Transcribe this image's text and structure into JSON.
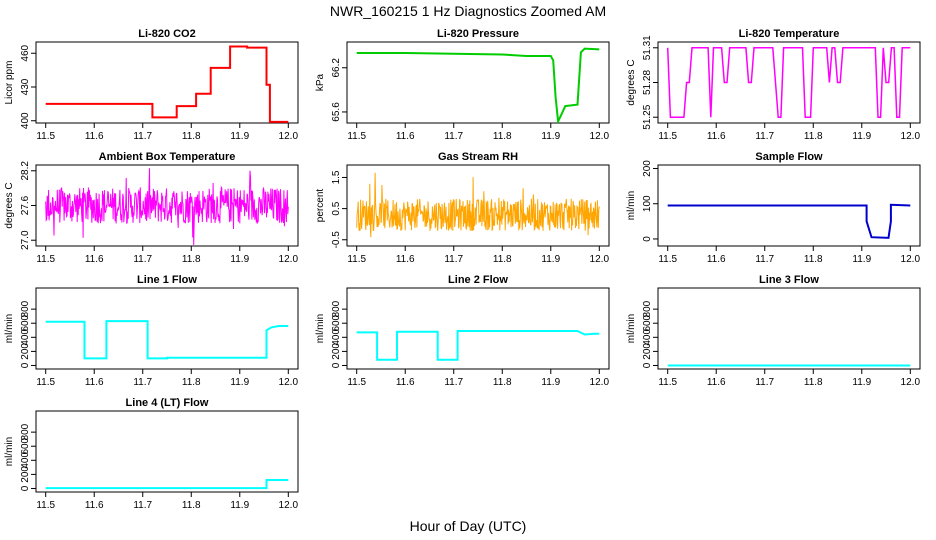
{
  "figure": {
    "title": "NWR_160215  1 Hz Diagnostics Zoomed AM",
    "xlabel": "Hour of Day (UTC)"
  },
  "chart_data": [
    {
      "type": "line",
      "title": "Li-820 CO2",
      "ylabel": "Licor ppm",
      "color": "#ff0000",
      "xlim": [
        11.48,
        12.02
      ],
      "ylim": [
        398,
        470
      ],
      "yticks": [
        "400",
        "430",
        "460"
      ],
      "xticks": [
        "11.5",
        "11.6",
        "11.7",
        "11.8",
        "11.9",
        "12.0"
      ],
      "x": [
        11.5,
        11.72,
        11.72,
        11.77,
        11.77,
        11.81,
        11.81,
        11.84,
        11.84,
        11.88,
        11.88,
        11.915,
        11.915,
        11.955,
        11.955,
        11.962,
        11.962,
        12.0
      ],
      "y": [
        415.0,
        415.0,
        403.0,
        403.0,
        413.0,
        413.0,
        424.0,
        424.0,
        447.0,
        447.0,
        466.0,
        466.0,
        465.0,
        465.0,
        432.0,
        432.0,
        399.0,
        399.0
      ]
    },
    {
      "type": "line",
      "title": "Li-820 Pressure",
      "ylabel": "kPa",
      "color": "#00cc00",
      "xlim": [
        11.48,
        12.02
      ],
      "ylim": [
        65.45,
        66.55
      ],
      "yticks": [
        "65.6",
        "66.2"
      ],
      "xticks": [
        "11.5",
        "11.6",
        "11.7",
        "11.8",
        "11.9",
        "12.0"
      ],
      "x": [
        11.5,
        11.6,
        11.7,
        11.8,
        11.85,
        11.9,
        11.905,
        11.91,
        11.915,
        11.93,
        11.955,
        11.962,
        11.97,
        12.0
      ],
      "y": [
        66.4,
        66.4,
        66.39,
        66.38,
        66.36,
        66.36,
        66.3,
        65.8,
        65.47,
        65.68,
        65.7,
        66.41,
        66.46,
        66.45
      ]
    },
    {
      "type": "line",
      "title": "Li-820 Temperature",
      "ylabel": "degrees C",
      "color": "#ff00ff",
      "xlim": [
        11.48,
        12.02
      ],
      "ylim": [
        51.245,
        51.315
      ],
      "yticks": [
        "51.25",
        "51.28",
        "51.31"
      ],
      "xticks": [
        "11.5",
        "11.6",
        "11.7",
        "11.8",
        "11.9",
        "12.0"
      ],
      "values": [
        51.25,
        51.28,
        51.31
      ],
      "note": "signal oscillates between 51.25 and 51.31 degC"
    },
    {
      "type": "line",
      "title": "Ambient Box Temperature",
      "ylabel": "degrees C",
      "color": "#ff00ff",
      "xlim": [
        11.48,
        12.02
      ],
      "ylim": [
        26.9,
        28.3
      ],
      "yticks": [
        "27.0",
        "27.6",
        "28.2"
      ],
      "xticks": [
        "11.5",
        "11.6",
        "11.7",
        "11.8",
        "11.9",
        "12.0"
      ],
      "mean": 27.6,
      "range": [
        26.9,
        28.3
      ]
    },
    {
      "type": "line",
      "title": "Gas Stream RH",
      "ylabel": "percent",
      "color": "#ffa500",
      "xlim": [
        11.48,
        12.02
      ],
      "ylim": [
        -0.7,
        1.9
      ],
      "yticks": [
        "-0.5",
        "0.5",
        "1.5"
      ],
      "xticks": [
        "11.5",
        "11.6",
        "11.7",
        "11.8",
        "11.9",
        "12.0"
      ],
      "mean": 0.3,
      "range": [
        -0.5,
        1.8
      ]
    },
    {
      "type": "line",
      "title": "Sample Flow",
      "ylabel": "ml/min",
      "color": "#0000cc",
      "xlim": [
        11.48,
        12.02
      ],
      "ylim": [
        -20,
        210
      ],
      "yticks": [
        "0",
        "100",
        "200"
      ],
      "xticks": [
        "11.5",
        "11.6",
        "11.7",
        "11.8",
        "11.9",
        "12.0"
      ],
      "x": [
        11.5,
        11.91,
        11.91,
        11.92,
        11.955,
        11.96,
        11.96,
        12.0
      ],
      "y": [
        95,
        95,
        50,
        5,
        3,
        50,
        97,
        95
      ]
    },
    {
      "type": "line",
      "title": "Line 1 Flow",
      "ylabel": "ml/min",
      "color": "#00ffff",
      "xlim": [
        11.48,
        12.02
      ],
      "ylim": [
        -50,
        1100
      ],
      "yticks": [
        "0",
        "200",
        "400",
        "600",
        "800"
      ],
      "xticks": [
        "11.5",
        "11.6",
        "11.7",
        "11.8",
        "11.9",
        "12.0"
      ],
      "x": [
        11.5,
        11.58,
        11.58,
        11.625,
        11.625,
        11.71,
        11.71,
        11.75,
        11.75,
        11.955,
        11.955,
        11.965,
        11.98,
        12.0
      ],
      "y": [
        620,
        620,
        100,
        100,
        630,
        630,
        100,
        100,
        110,
        110,
        500,
        540,
        560,
        560
      ]
    },
    {
      "type": "line",
      "title": "Line 2 Flow",
      "ylabel": "ml/min",
      "color": "#00ffff",
      "xlim": [
        11.48,
        12.02
      ],
      "ylim": [
        -50,
        1100
      ],
      "yticks": [
        "0",
        "200",
        "400",
        "600",
        "800"
      ],
      "xticks": [
        "11.5",
        "11.6",
        "11.7",
        "11.8",
        "11.9",
        "12.0"
      ],
      "x": [
        11.5,
        11.542,
        11.542,
        11.583,
        11.583,
        11.667,
        11.667,
        11.708,
        11.708,
        11.955,
        11.97,
        11.99,
        12.0
      ],
      "y": [
        470,
        470,
        80,
        80,
        480,
        480,
        80,
        80,
        490,
        490,
        440,
        450,
        450
      ]
    },
    {
      "type": "line",
      "title": "Line 3 Flow",
      "ylabel": "ml/min",
      "color": "#00ffff",
      "xlim": [
        11.48,
        12.02
      ],
      "ylim": [
        -50,
        1100
      ],
      "yticks": [
        "0",
        "200",
        "400",
        "600",
        "800"
      ],
      "xticks": [
        "11.5",
        "11.6",
        "11.7",
        "11.8",
        "11.9",
        "12.0"
      ],
      "x": [
        11.5,
        12.0
      ],
      "y": [
        0,
        0
      ]
    },
    {
      "type": "line",
      "title": "Line 4 (LT) Flow",
      "ylabel": "ml/min",
      "color": "#00ffff",
      "xlim": [
        11.48,
        12.02
      ],
      "ylim": [
        -50,
        1100
      ],
      "yticks": [
        "0",
        "200",
        "400",
        "600",
        "800"
      ],
      "xticks": [
        "11.5",
        "11.6",
        "11.7",
        "11.8",
        "11.9",
        "12.0"
      ],
      "x": [
        11.5,
        11.955,
        11.955,
        12.0
      ],
      "y": [
        5,
        5,
        120,
        120
      ]
    }
  ]
}
